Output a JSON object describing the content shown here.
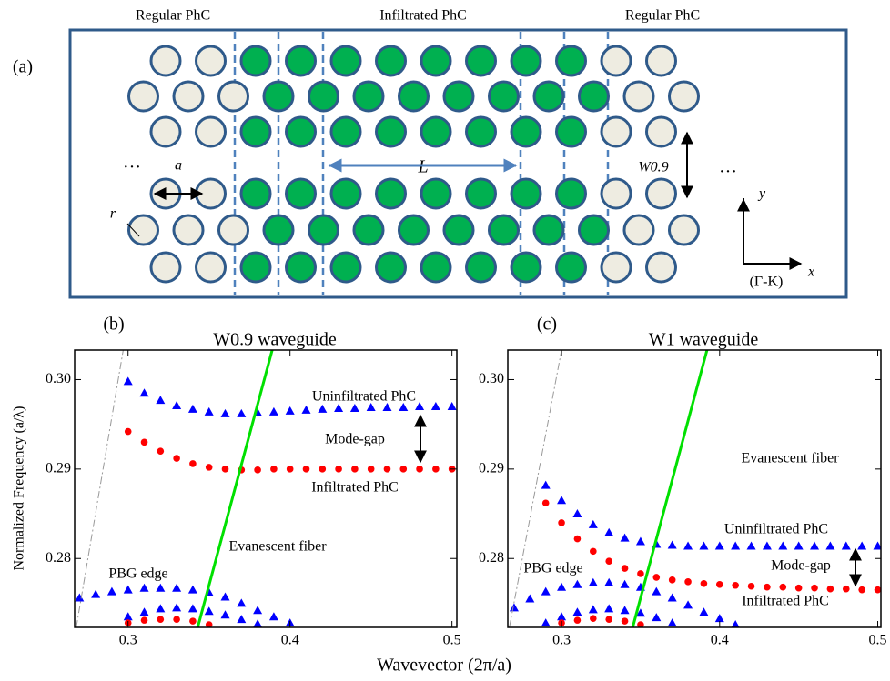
{
  "schematic": {
    "panel_label": "(a)",
    "region_labels": [
      "Regular PhC",
      "Infiltrated PhC",
      "Regular PhC"
    ],
    "lattice_constant": "a",
    "radius": "r",
    "length": "L",
    "width": "W0.9",
    "ellipsis": [
      "…",
      "…"
    ],
    "axis_y": "y",
    "axis_x": "x",
    "direction": "(Γ-K)"
  },
  "figure": {
    "xlabel": "Wavevector (2π/a)",
    "ylabel": "Normalized Frequency (a/λ)"
  },
  "chart_data": [
    {
      "type": "scatter",
      "panel_label": "(b)",
      "title": "W0.9 waveguide",
      "xlim": [
        0.267,
        0.503
      ],
      "ylim": [
        0.2723,
        0.3033
      ],
      "xticks": [
        0.3,
        0.4,
        0.5
      ],
      "yticks": [
        0.28,
        0.29,
        {
          "value": 0.3,
          "label": "0.30"
        }
      ],
      "series": [
        {
          "color": "#0000ff",
          "marker": "triangle",
          "x": [
            0.3,
            0.31,
            0.32,
            0.33,
            0.34,
            0.35,
            0.36,
            0.37,
            0.38,
            0.39,
            0.4,
            0.41,
            0.42,
            0.43,
            0.44,
            0.45,
            0.46,
            0.47,
            0.48,
            0.49,
            0.5
          ],
          "values": [
            0.2998,
            0.2985,
            0.2977,
            0.2971,
            0.2967,
            0.2964,
            0.2962,
            0.2962,
            0.2963,
            0.2964,
            0.2965,
            0.2966,
            0.2967,
            0.2968,
            0.2968,
            0.2969,
            0.2969,
            0.2969,
            0.297,
            0.297,
            0.297
          ]
        },
        {
          "color": "#ff0000",
          "marker": "circle",
          "x": [
            0.3,
            0.31,
            0.32,
            0.33,
            0.34,
            0.35,
            0.36,
            0.37,
            0.38,
            0.39,
            0.4,
            0.41,
            0.42,
            0.43,
            0.44,
            0.45,
            0.46,
            0.47,
            0.48,
            0.49,
            0.5
          ],
          "values": [
            0.2942,
            0.293,
            0.292,
            0.2912,
            0.2906,
            0.2902,
            0.29,
            0.2899,
            0.2899,
            0.29,
            0.29,
            0.29,
            0.29,
            0.29,
            0.29,
            0.29,
            0.29,
            0.29,
            0.29,
            0.29,
            0.29
          ]
        },
        {
          "color": "#0000ff",
          "marker": "triangle",
          "x": [
            0.27,
            0.28,
            0.29,
            0.3,
            0.31,
            0.32,
            0.33,
            0.34,
            0.35,
            0.36,
            0.37,
            0.38,
            0.39,
            0.4
          ],
          "values": [
            0.2756,
            0.276,
            0.2763,
            0.2765,
            0.2767,
            0.2767,
            0.2767,
            0.2765,
            0.2762,
            0.2757,
            0.275,
            0.2742,
            0.2735,
            0.2728
          ]
        },
        {
          "color": "#0000ff",
          "marker": "triangle",
          "x": [
            0.3,
            0.31,
            0.32,
            0.33,
            0.34,
            0.35,
            0.36,
            0.37,
            0.38
          ],
          "values": [
            0.2735,
            0.274,
            0.2744,
            0.2745,
            0.2744,
            0.2741,
            0.2737,
            0.2732,
            0.2727
          ]
        },
        {
          "color": "#ff0000",
          "marker": "circle",
          "x": [
            0.3,
            0.31,
            0.32,
            0.33,
            0.34,
            0.35
          ],
          "values": [
            0.2728,
            0.2731,
            0.2732,
            0.2732,
            0.273,
            0.2726
          ]
        },
        {
          "color": "#00e000",
          "marker": "line",
          "x": [
            0.343,
            0.389
          ],
          "values": [
            0.2723,
            0.3033
          ]
        },
        {
          "color": "#999999",
          "marker": "dashed-line",
          "x": [
            0.268,
            0.297
          ],
          "values": [
            0.2723,
            0.3033
          ]
        }
      ],
      "annotations": [
        "Uninfiltrated PhC",
        "Mode-gap",
        "Infiltrated PhC",
        "Evanescent fiber",
        "PBG edge"
      ]
    },
    {
      "type": "scatter",
      "panel_label": "(c)",
      "title": "W1 waveguide",
      "xlim": [
        0.266,
        0.502
      ],
      "ylim": [
        0.2723,
        0.3033
      ],
      "xticks": [
        0.3,
        0.4,
        0.5
      ],
      "yticks": [
        0.28,
        0.29,
        {
          "value": 0.3,
          "label": "0.30"
        }
      ],
      "series": [
        {
          "color": "#0000ff",
          "marker": "triangle",
          "x": [
            0.29,
            0.3,
            0.31,
            0.32,
            0.33,
            0.34,
            0.35,
            0.36,
            0.37,
            0.38,
            0.39,
            0.4,
            0.41,
            0.42,
            0.43,
            0.44,
            0.45,
            0.46,
            0.47,
            0.48,
            0.49,
            0.5
          ],
          "values": [
            0.2882,
            0.2865,
            0.285,
            0.2838,
            0.2829,
            0.2823,
            0.2819,
            0.2816,
            0.2815,
            0.2814,
            0.2814,
            0.2814,
            0.2814,
            0.2814,
            0.2814,
            0.2814,
            0.2814,
            0.2814,
            0.2814,
            0.2814,
            0.2814,
            0.2814
          ]
        },
        {
          "color": "#ff0000",
          "marker": "circle",
          "x": [
            0.29,
            0.3,
            0.31,
            0.32,
            0.33,
            0.34,
            0.35,
            0.36,
            0.37,
            0.38,
            0.39,
            0.4,
            0.41,
            0.42,
            0.43,
            0.44,
            0.45,
            0.46,
            0.47,
            0.48,
            0.49,
            0.5
          ],
          "values": [
            0.2862,
            0.284,
            0.2822,
            0.2808,
            0.2797,
            0.2789,
            0.2783,
            0.2779,
            0.2776,
            0.2774,
            0.2772,
            0.2771,
            0.277,
            0.2769,
            0.2768,
            0.2768,
            0.2767,
            0.2767,
            0.2766,
            0.2766,
            0.2765,
            0.2765
          ]
        },
        {
          "color": "#0000ff",
          "marker": "triangle",
          "x": [
            0.27,
            0.28,
            0.29,
            0.3,
            0.31,
            0.32,
            0.33,
            0.34,
            0.35,
            0.36,
            0.37,
            0.38,
            0.39,
            0.4,
            0.41
          ],
          "values": [
            0.2745,
            0.2755,
            0.2763,
            0.2768,
            0.2771,
            0.2773,
            0.2773,
            0.2771,
            0.2768,
            0.2763,
            0.2756,
            0.2748,
            0.274,
            0.2733,
            0.2726
          ]
        },
        {
          "color": "#0000ff",
          "marker": "triangle",
          "x": [
            0.29,
            0.3,
            0.31,
            0.32,
            0.33,
            0.34,
            0.35,
            0.36,
            0.37
          ],
          "values": [
            0.2728,
            0.2735,
            0.274,
            0.2743,
            0.2744,
            0.2742,
            0.2739,
            0.2734,
            0.2728
          ]
        },
        {
          "color": "#ff0000",
          "marker": "circle",
          "x": [
            0.3,
            0.31,
            0.32,
            0.33,
            0.34,
            0.35
          ],
          "values": [
            0.2728,
            0.2731,
            0.2733,
            0.2732,
            0.273,
            0.2726
          ]
        },
        {
          "color": "#00e000",
          "marker": "line",
          "x": [
            0.345,
            0.392
          ],
          "values": [
            0.2723,
            0.3033
          ]
        },
        {
          "color": "#999999",
          "marker": "dashed-line",
          "x": [
            0.267,
            0.3
          ],
          "values": [
            0.2723,
            0.3033
          ]
        }
      ],
      "annotations": [
        "Evanescent fiber",
        "Uninfiltrated PhC",
        "Mode-gap",
        "PBG edge",
        "Infiltrated PhC"
      ]
    }
  ]
}
